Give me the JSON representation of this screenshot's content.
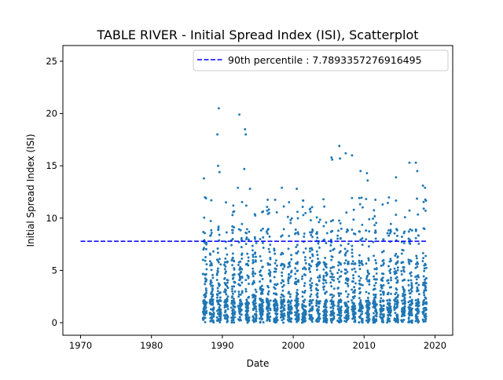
{
  "chart_data": {
    "type": "scatter",
    "title": "TABLE RIVER - Initial Spread Index (ISI), Scatterplot",
    "xlabel": "Date",
    "ylabel": "Initial Spread Index (ISI)",
    "xlim": [
      1967.5,
      2022.5
    ],
    "ylim": [
      -1.2,
      26.5
    ],
    "x_ticks": [
      1970,
      1980,
      1990,
      2000,
      2010,
      2020
    ],
    "y_ticks": [
      0,
      5,
      10,
      15,
      20,
      25
    ],
    "grid": false,
    "legend_position": "top-right",
    "series": [
      {
        "name": "90th percentile : 7.7893357276916495",
        "type": "hline",
        "y": 7.7893357276916495,
        "x_range": [
          1970,
          2019
        ],
        "color": "#0000ff",
        "dash": "dashed"
      },
      {
        "type": "scatter",
        "color": "#1f77b4",
        "x_range": [
          1987,
          2019
        ],
        "seasons": [
          1987,
          1988,
          1989,
          1990,
          1991,
          1992,
          1993,
          1994,
          1995,
          1996,
          1997,
          1998,
          1999,
          2000,
          2001,
          2002,
          2003,
          2004,
          2005,
          2006,
          2007,
          2008,
          2009,
          2010,
          2011,
          2012,
          2013,
          2014,
          2015,
          2016,
          2017,
          2018
        ],
        "notable_points": [
          {
            "x": 1987.4,
            "y": 13.8
          },
          {
            "x": 1987.7,
            "y": 11.9
          },
          {
            "x": 1989.3,
            "y": 18.0
          },
          {
            "x": 1989.5,
            "y": 20.5
          },
          {
            "x": 1989.4,
            "y": 15.0
          },
          {
            "x": 1989.6,
            "y": 14.4
          },
          {
            "x": 1992.4,
            "y": 19.9
          },
          {
            "x": 1992.2,
            "y": 12.9
          },
          {
            "x": 1993.2,
            "y": 18.5
          },
          {
            "x": 1993.3,
            "y": 18.0
          },
          {
            "x": 1993.1,
            "y": 14.7
          },
          {
            "x": 1993.9,
            "y": 12.8
          },
          {
            "x": 1998.4,
            "y": 12.9
          },
          {
            "x": 2000.5,
            "y": 12.8
          },
          {
            "x": 2000.6,
            "y": 10.6
          },
          {
            "x": 2002.4,
            "y": 10.9
          },
          {
            "x": 2005.5,
            "y": 15.6
          },
          {
            "x": 2005.4,
            "y": 15.8
          },
          {
            "x": 2006.5,
            "y": 16.9
          },
          {
            "x": 2006.6,
            "y": 15.7
          },
          {
            "x": 2007.4,
            "y": 16.2
          },
          {
            "x": 2008.3,
            "y": 16.0
          },
          {
            "x": 2009.5,
            "y": 14.5
          },
          {
            "x": 2010.4,
            "y": 14.3
          },
          {
            "x": 2010.5,
            "y": 13.6
          },
          {
            "x": 2014.5,
            "y": 13.9
          },
          {
            "x": 2016.4,
            "y": 15.3
          },
          {
            "x": 2017.3,
            "y": 15.3
          },
          {
            "x": 2017.5,
            "y": 14.5
          },
          {
            "x": 2018.3,
            "y": 13.1
          },
          {
            "x": 2018.6,
            "y": 12.9
          }
        ]
      }
    ]
  }
}
